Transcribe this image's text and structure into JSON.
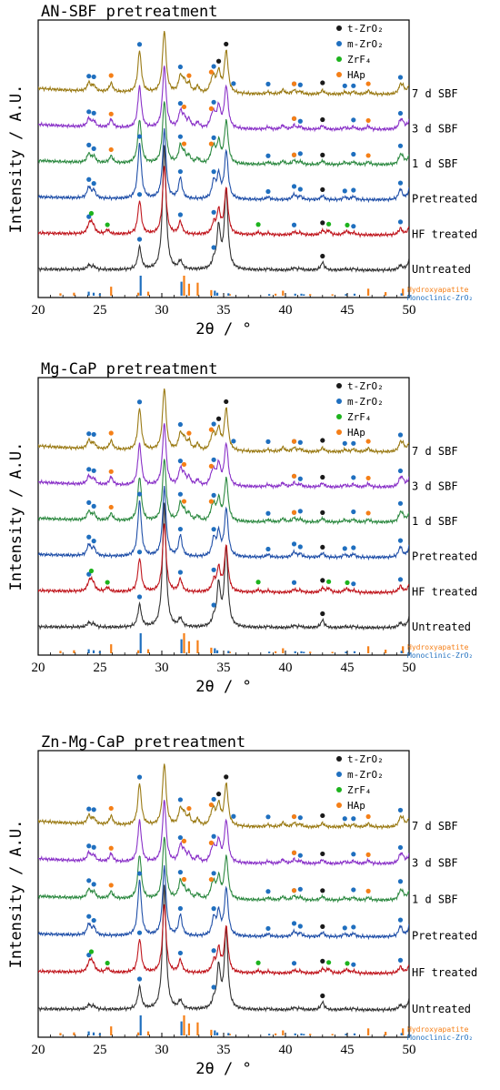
{
  "colors": {
    "black": "#1a1a1a",
    "blue": "#1f6fbf",
    "green": "#1db31d",
    "orange": "#f57f17",
    "traces": [
      "#333333",
      "#c0161d",
      "#1f4fa8",
      "#2e8a42",
      "#8a32c8",
      "#9a7a14"
    ]
  },
  "legend": [
    {
      "label": "t-ZrO₂",
      "color": "black"
    },
    {
      "label": "m-ZrO₂",
      "color": "blue"
    },
    {
      "label": "ZrF₄",
      "color": "green"
    },
    {
      "label": "HAp",
      "color": "orange"
    }
  ],
  "trace_labels": [
    "Untreated",
    "HF treated",
    "Pretreated",
    "1 d SBF",
    "3 d SBF",
    "7 d SBF"
  ],
  "reference_labels": [
    "Hydroxyapatite",
    "Monoclinic-ZrO₂"
  ],
  "chart_data": [
    {
      "type": "line",
      "title": "AN-SBF pretreatment",
      "xlabel": "2θ / °",
      "ylabel": "Intensity / A.U.",
      "xlim": [
        20,
        50
      ],
      "xticks": [
        20,
        25,
        30,
        35,
        40,
        45,
        50
      ],
      "series": [
        "Untreated",
        "HF treated",
        "Pretreated",
        "1 d SBF",
        "3 d SBF",
        "7 d SBF"
      ]
    },
    {
      "type": "line",
      "title": "Mg-CaP pretreatment",
      "xlabel": "2θ / °",
      "ylabel": "Intensity / A.U.",
      "xlim": [
        20,
        50
      ],
      "xticks": [
        20,
        25,
        30,
        35,
        40,
        45,
        50
      ],
      "series": [
        "Untreated",
        "HF treated",
        "Pretreated",
        "1 d SBF",
        "3 d SBF",
        "7 d SBF"
      ]
    },
    {
      "type": "line",
      "title": "Zn-Mg-CaP pretreatment",
      "xlabel": "2θ / °",
      "ylabel": "Intensity / A.U.",
      "xlim": [
        20,
        50
      ],
      "xticks": [
        20,
        25,
        30,
        35,
        40,
        45,
        50
      ],
      "series": [
        "Untreated",
        "HF treated",
        "Pretreated",
        "1 d SBF",
        "3 d SBF",
        "7 d SBF"
      ]
    }
  ],
  "peaks": {
    "mZrO2": [
      {
        "x": 24.1,
        "h": 0.32
      },
      {
        "x": 24.5,
        "h": 0.22
      },
      {
        "x": 28.2,
        "h": 1.6
      },
      {
        "x": 31.5,
        "h": 0.6
      },
      {
        "x": 34.2,
        "h": 0.5
      },
      {
        "x": 35.3,
        "h": 0.2
      },
      {
        "x": 38.6,
        "h": 0.08
      },
      {
        "x": 40.7,
        "h": 0.15
      },
      {
        "x": 41.2,
        "h": 0.1
      },
      {
        "x": 44.8,
        "h": 0.08
      },
      {
        "x": 45.5,
        "h": 0.1
      },
      {
        "x": 49.3,
        "h": 0.3
      },
      {
        "x": 50.1,
        "h": 0.25
      }
    ],
    "tZrO2": [
      {
        "x": 30.2,
        "h": 3.6
      },
      {
        "x": 34.6,
        "h": 1.2
      },
      {
        "x": 35.2,
        "h": 2.2
      },
      {
        "x": 43.0,
        "h": 0.22
      },
      {
        "x": 50.2,
        "h": 0.6
      }
    ],
    "ZrF4": [
      {
        "x": 24.3,
        "h": 0.25
      },
      {
        "x": 25.6,
        "h": 0.12
      },
      {
        "x": 37.8,
        "h": 0.07
      },
      {
        "x": 43.5,
        "h": 0.12
      },
      {
        "x": 45.0,
        "h": 0.08
      }
    ],
    "HAp": [
      {
        "x": 25.9,
        "h": 0.25
      },
      {
        "x": 31.8,
        "h": 0.3
      },
      {
        "x": 32.2,
        "h": 0.25
      },
      {
        "x": 32.9,
        "h": 0.18
      },
      {
        "x": 34.0,
        "h": 0.2
      },
      {
        "x": 39.8,
        "h": 0.12
      },
      {
        "x": 46.7,
        "h": 0.1
      },
      {
        "x": 49.5,
        "h": 0.15
      }
    ],
    "ref_hap": [
      {
        "x": 21.8,
        "h": 0.12
      },
      {
        "x": 22.9,
        "h": 0.15
      },
      {
        "x": 25.9,
        "h": 0.45
      },
      {
        "x": 28.1,
        "h": 0.15
      },
      {
        "x": 28.9,
        "h": 0.2
      },
      {
        "x": 31.8,
        "h": 1.0
      },
      {
        "x": 32.2,
        "h": 0.6
      },
      {
        "x": 32.9,
        "h": 0.65
      },
      {
        "x": 34.0,
        "h": 0.28
      },
      {
        "x": 35.5,
        "h": 0.08
      },
      {
        "x": 39.2,
        "h": 0.1
      },
      {
        "x": 39.8,
        "h": 0.25
      },
      {
        "x": 42.0,
        "h": 0.08
      },
      {
        "x": 43.8,
        "h": 0.07
      },
      {
        "x": 46.7,
        "h": 0.35
      },
      {
        "x": 48.1,
        "h": 0.18
      },
      {
        "x": 49.5,
        "h": 0.35
      }
    ],
    "ref_mono": [
      {
        "x": 24.0,
        "h": 0.2
      },
      {
        "x": 24.4,
        "h": 0.15
      },
      {
        "x": 24.9,
        "h": 0.1
      },
      {
        "x": 28.2,
        "h": 1.0
      },
      {
        "x": 31.5,
        "h": 0.7
      },
      {
        "x": 34.2,
        "h": 0.25
      },
      {
        "x": 34.4,
        "h": 0.15
      },
      {
        "x": 35.3,
        "h": 0.12
      },
      {
        "x": 38.6,
        "h": 0.08
      },
      {
        "x": 40.7,
        "h": 0.1
      },
      {
        "x": 41.2,
        "h": 0.1
      },
      {
        "x": 41.4,
        "h": 0.07
      },
      {
        "x": 44.8,
        "h": 0.08
      },
      {
        "x": 45.5,
        "h": 0.1
      },
      {
        "x": 49.3,
        "h": 0.12
      },
      {
        "x": 50.1,
        "h": 0.15
      }
    ]
  },
  "traces": [
    {
      "m": 0.4,
      "t": 1.0,
      "f": 0.0,
      "h": 0.0,
      "dots": {
        "t": [
          43.0
        ],
        "m": [
          28.2,
          34.2
        ]
      }
    },
    {
      "m": 0.6,
      "t": 0.55,
      "f": 1.0,
      "h": 0.0,
      "dots": {
        "t": [
          43.0
        ],
        "m": [
          24.1,
          28.2,
          31.5,
          34.2,
          40.7,
          45.5,
          49.3
        ],
        "f": [
          24.3,
          25.6,
          37.8,
          43.5,
          45.0
        ]
      }
    },
    {
      "m": 1.0,
      "t": 0.55,
      "f": 0.0,
      "h": 0.0,
      "dots": {
        "t": [
          43.0
        ],
        "m": [
          24.1,
          24.5,
          28.2,
          31.5,
          34.2,
          38.6,
          40.7,
          41.2,
          44.8,
          45.5,
          49.3
        ]
      }
    },
    {
      "m": 0.8,
      "t": 0.5,
      "f": 0.0,
      "h": 0.8,
      "dots": {
        "t": [
          43.0
        ],
        "m": [
          24.1,
          24.5,
          31.5,
          34.2,
          38.6,
          40.7,
          41.2,
          45.5,
          49.3
        ],
        "h": [
          25.9,
          31.8,
          34.0,
          40.7,
          46.7
        ]
      }
    },
    {
      "m": 0.75,
      "t": 0.5,
      "f": 0.0,
      "h": 0.9,
      "dots": {
        "t": [
          43.0
        ],
        "m": [
          24.1,
          24.5,
          31.5,
          34.2,
          40.7,
          41.2,
          45.5,
          49.3
        ],
        "h": [
          25.9,
          31.8,
          34.0,
          40.7,
          46.7
        ]
      }
    },
    {
      "m": 0.75,
      "t": 0.5,
      "f": 0.0,
      "h": 1.0,
      "dots": {
        "t": [
          34.6,
          35.2,
          43.0
        ],
        "m": [
          24.1,
          24.5,
          28.2,
          31.5,
          34.2,
          35.8,
          38.6,
          40.7,
          41.2,
          44.8,
          45.5,
          49.3
        ],
        "h": [
          25.9,
          32.2,
          34.0,
          40.7,
          46.7
        ]
      }
    }
  ]
}
